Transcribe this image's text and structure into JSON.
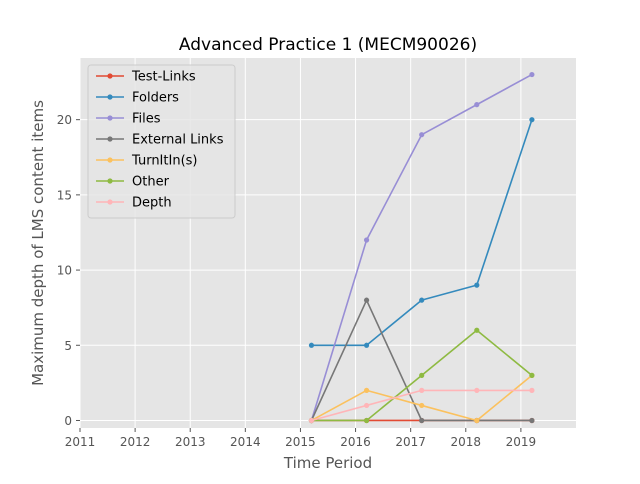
{
  "chart_data": {
    "type": "line",
    "title": "Advanced Practice 1 (MECM90026)",
    "xlabel": "Time Period",
    "ylabel": "Maximum depth of LMS content items",
    "xlim": [
      2011,
      2020
    ],
    "ylim": [
      -0.5,
      24.1
    ],
    "x_ticks": [
      2011,
      2012,
      2013,
      2014,
      2015,
      2016,
      2017,
      2018,
      2019
    ],
    "y_ticks": [
      0,
      5,
      10,
      15,
      20
    ],
    "x": [
      2015.2,
      2016.2,
      2017.2,
      2018.2,
      2019.2
    ],
    "grid": true,
    "legend_position": "upper-left",
    "series": [
      {
        "name": "Test-Links",
        "color": "#E24A33",
        "values": [
          0,
          0,
          0,
          0,
          0
        ]
      },
      {
        "name": "Folders",
        "color": "#348ABD",
        "values": [
          5,
          5,
          8,
          9,
          20
        ]
      },
      {
        "name": "Files",
        "color": "#988ED5",
        "values": [
          0,
          12,
          19,
          21,
          23
        ]
      },
      {
        "name": "External Links",
        "color": "#777777",
        "values": [
          0,
          8,
          0,
          0,
          0
        ]
      },
      {
        "name": "TurnItIn(s)",
        "color": "#FBC15E",
        "values": [
          0,
          2,
          1,
          0,
          3
        ]
      },
      {
        "name": "Other",
        "color": "#8EBA42",
        "values": [
          0,
          0,
          3,
          6,
          3
        ]
      },
      {
        "name": "Depth",
        "color": "#FFB5B8",
        "values": [
          0,
          1,
          2,
          2,
          2
        ]
      }
    ]
  }
}
